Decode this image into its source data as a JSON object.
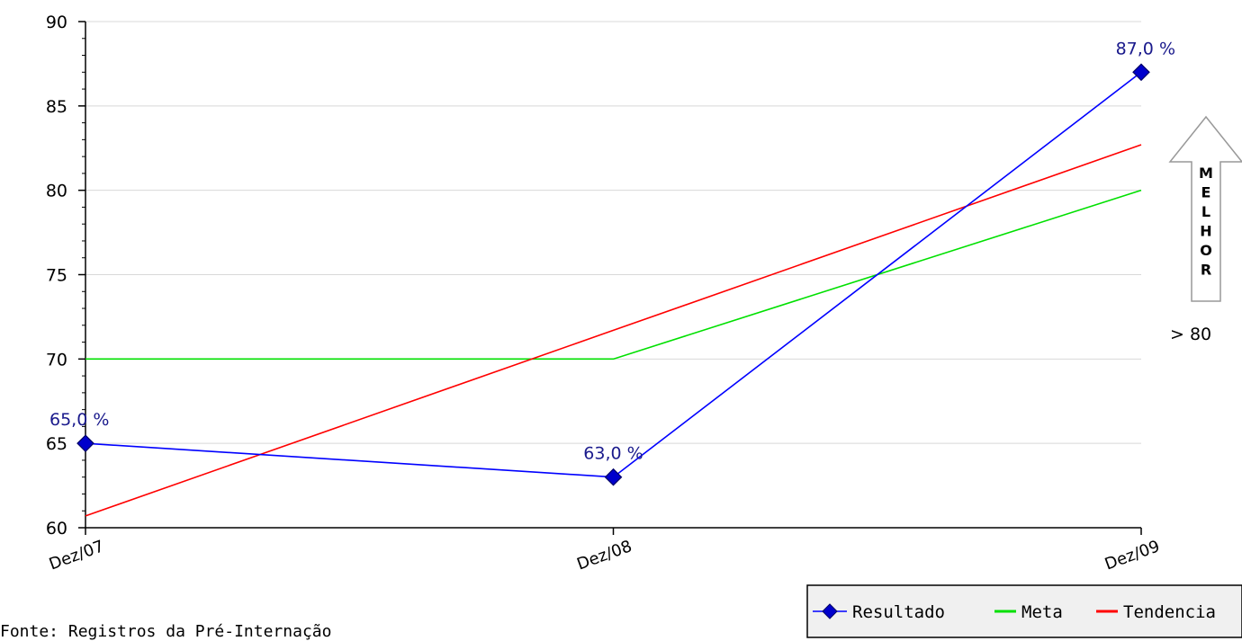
{
  "chart_data": {
    "type": "line",
    "categories": [
      "Dez/07",
      "Dez/08",
      "Dez/09"
    ],
    "ylim": [
      60,
      90
    ],
    "yticks": [
      60,
      65,
      70,
      75,
      80,
      85,
      90
    ],
    "grid": true,
    "legend_position": "bottom-right",
    "series": [
      {
        "name": "Resultado",
        "values": [
          65.0,
          63.0,
          87.0
        ],
        "color": "#0000ff",
        "marker": "diamond",
        "labels": [
          "65,0 %",
          "63,0 %",
          "87,0 %"
        ]
      },
      {
        "name": "Meta",
        "values": [
          70,
          70,
          80
        ],
        "color": "#00e000"
      },
      {
        "name": "Tendencia",
        "values": [
          60.7,
          71.7,
          82.7
        ],
        "color": "#ff0000"
      }
    ],
    "direction": {
      "word": "MELHOR",
      "threshold_text": "> 80"
    }
  },
  "footer": {
    "source": "Fonte: Registros da Pré-Internação"
  }
}
